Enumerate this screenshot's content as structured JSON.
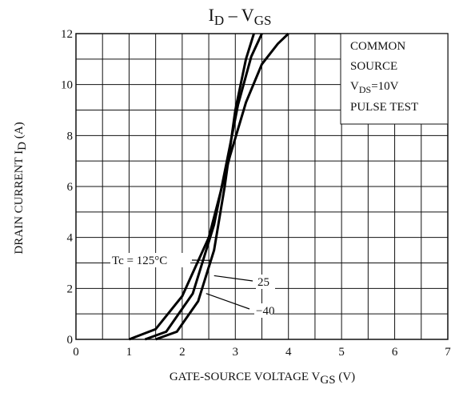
{
  "chart_data": {
    "type": "line",
    "title": [
      "I",
      "D",
      " – V",
      "GS"
    ],
    "x_label": [
      "GATE-SOURCE VOLTAGE  V",
      "GS",
      "  (V)"
    ],
    "y_label": [
      "DRAIN CURRENT  I",
      "D",
      "  (A)"
    ],
    "annotation": {
      "line1": "COMMON",
      "line2": "SOURCE",
      "line3": [
        "V",
        "DS",
        "=10V"
      ],
      "line4": "PULSE TEST"
    },
    "xlim": [
      0,
      7
    ],
    "ylim": [
      0,
      12
    ],
    "xticks": [
      0,
      1,
      2,
      3,
      4,
      5,
      6,
      7
    ],
    "yticks": [
      0,
      2,
      4,
      6,
      8,
      10,
      12
    ],
    "x_minor_grid": [
      0.5,
      1.5,
      2.5,
      3.5,
      4.5,
      5.5,
      6.5
    ],
    "y_minor_grid": [
      1,
      3,
      5,
      7,
      9,
      11
    ],
    "grid": true,
    "series": [
      {
        "name": "Tc = 125°C",
        "color": "#000000",
        "x": [
          1.0,
          1.5,
          2.0,
          2.5,
          2.9,
          3.2,
          3.5,
          3.8,
          4.0
        ],
        "values": [
          0,
          0.4,
          1.7,
          4.0,
          7.2,
          9.3,
          10.8,
          11.6,
          12
        ]
      },
      {
        "name": "25",
        "color": "#000000",
        "x": [
          1.3,
          1.7,
          2.2,
          2.6,
          2.9,
          3.05,
          3.3,
          3.5
        ],
        "values": [
          0,
          0.3,
          1.8,
          4.5,
          7.6,
          9.2,
          11.1,
          12
        ]
      },
      {
        "name": "−40",
        "color": "#000000",
        "x": [
          1.5,
          1.9,
          2.3,
          2.6,
          2.8,
          3.0,
          3.2,
          3.35
        ],
        "values": [
          0,
          0.3,
          1.5,
          3.5,
          6.0,
          9.0,
          11.0,
          12
        ]
      }
    ]
  }
}
